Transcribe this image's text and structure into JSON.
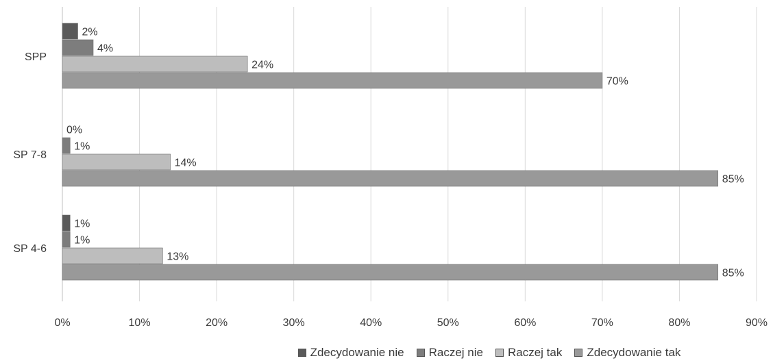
{
  "chart_data": {
    "type": "bar",
    "orientation": "horizontal",
    "categories": [
      "SPP",
      "SP 7-8",
      "SP 4-6"
    ],
    "series": [
      {
        "name": "Zdecydowanie nie",
        "values": [
          2,
          0,
          1
        ],
        "labels": [
          "2%",
          "0%",
          "1%"
        ],
        "color": "#5a5a5a"
      },
      {
        "name": "Raczej nie",
        "values": [
          4,
          1,
          1
        ],
        "labels": [
          "4%",
          "1%",
          "1%"
        ],
        "color": "#7d7d7d"
      },
      {
        "name": "Raczej tak",
        "values": [
          24,
          14,
          13
        ],
        "labels": [
          "24%",
          "14%",
          "13%"
        ],
        "color": "#bdbdbd"
      },
      {
        "name": "Zdecydowanie tak",
        "values": [
          70,
          85,
          85
        ],
        "labels": [
          "70%",
          "85%",
          "85%"
        ],
        "color": "#999999"
      }
    ],
    "xlim": [
      0,
      90
    ],
    "xticks": [
      0,
      10,
      20,
      30,
      40,
      50,
      60,
      70,
      80,
      90
    ],
    "xtick_labels": [
      "0%",
      "10%",
      "20%",
      "30%",
      "40%",
      "50%",
      "60%",
      "70%",
      "80%",
      "90%"
    ],
    "grid": true,
    "legend": "bottom"
  }
}
